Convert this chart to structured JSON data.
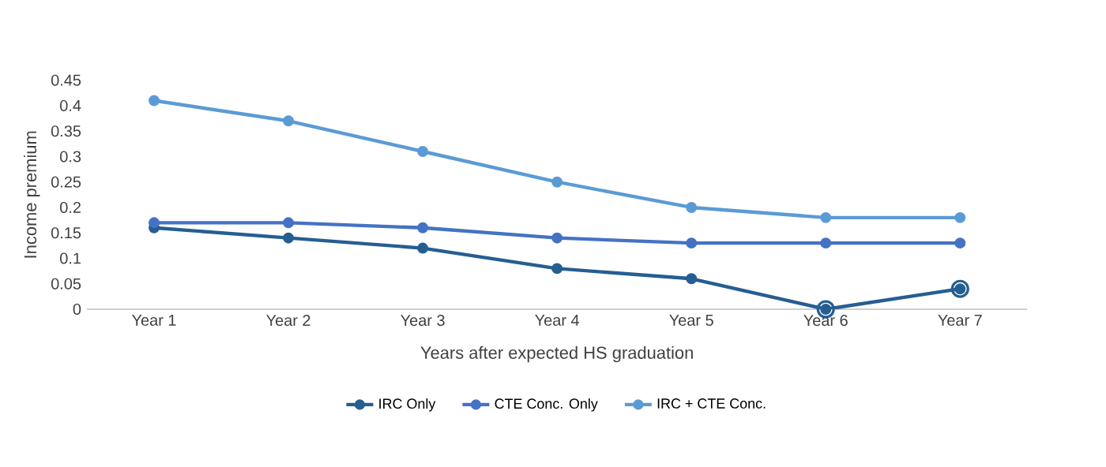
{
  "chart_data": {
    "type": "line",
    "xlabel": "Years after expected HS graduation",
    "ylabel": "Income premium",
    "categories": [
      "Year 1",
      "Year 2",
      "Year 3",
      "Year 4",
      "Year 5",
      "Year 6",
      "Year 7"
    ],
    "series": [
      {
        "name": "IRC Only",
        "color": "#255e91",
        "values": [
          0.16,
          0.14,
          0.12,
          0.08,
          0.06,
          0.0,
          0.04
        ]
      },
      {
        "name": "CTE Conc. Only",
        "color": "#4472c4",
        "values": [
          0.17,
          0.17,
          0.16,
          0.14,
          0.13,
          0.13,
          0.13
        ]
      },
      {
        "name": "IRC + CTE Conc.",
        "color": "#5b9bd5",
        "values": [
          0.41,
          0.37,
          0.31,
          0.25,
          0.2,
          0.18,
          0.18
        ]
      },
      {
        "type": "scatter",
        "color": "#255e91",
        "values": [
          null,
          null,
          null,
          null,
          null,
          0.0,
          0.04
        ]
      }
    ],
    "ylim": [
      0,
      0.45
    ],
    "yticks": [
      0,
      0.05,
      0.1,
      0.15,
      0.2,
      0.25,
      0.3,
      0.35,
      0.4,
      0.45
    ],
    "grid": false,
    "legend": "bottom",
    "marker": "circle",
    "line_style": "solid"
  }
}
